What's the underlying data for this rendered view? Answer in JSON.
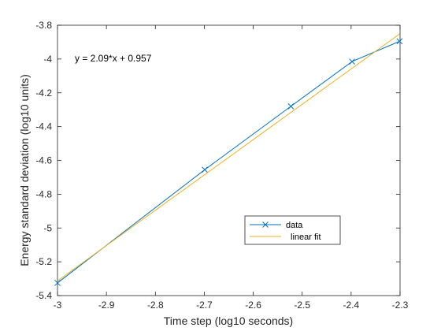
{
  "chart_data": {
    "type": "line",
    "xlabel": "Time step (log10 seconds)",
    "ylabel": "Energy standard deviation (log10 units)",
    "xlim": [
      -3,
      -2.3
    ],
    "ylim": [
      -5.4,
      -3.8
    ],
    "xticks": [
      "-3",
      "-2.9",
      "-2.8",
      "-2.7",
      "-2.6",
      "-2.5",
      "-2.4",
      "-2.3"
    ],
    "yticks": [
      "-3.8",
      "-4",
      "-4.2",
      "-4.4",
      "-4.6",
      "-4.8",
      "-5",
      "-5.2",
      "-5.4"
    ],
    "annotation": "y = 2.09*x + 0.957",
    "grid": false,
    "legend_position": "bottom-right",
    "series": [
      {
        "name": "data",
        "color": "#0072BD",
        "marker": "x",
        "x": [
          -3.0,
          -2.699,
          -2.523,
          -2.398,
          -2.301
        ],
        "y": [
          -5.325,
          -4.655,
          -4.28,
          -4.015,
          -3.895
        ]
      },
      {
        "name": "linear fit",
        "color": "#EDB120",
        "marker": "none",
        "x": [
          -3.0,
          -2.301
        ],
        "y": [
          -5.313,
          -3.852
        ]
      }
    ]
  }
}
